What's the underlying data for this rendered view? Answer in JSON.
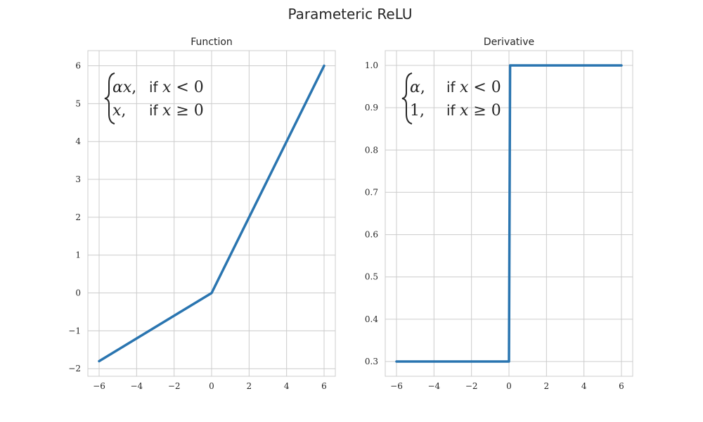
{
  "suptitle": "Parameteric ReLU",
  "colors": {
    "line": "#2a75b0"
  },
  "chart_data": [
    {
      "type": "line",
      "title": "Function",
      "xlabel": "",
      "ylabel": "",
      "xlim": [
        -6.6,
        6.6
      ],
      "ylim": [
        -2.2,
        6.4
      ],
      "xticks": [
        -6,
        -4,
        -2,
        0,
        2,
        4,
        6
      ],
      "xtick_labels": [
        "−6",
        "−4",
        "−2",
        "0",
        "2",
        "4",
        "6"
      ],
      "yticks": [
        -2,
        -1,
        0,
        1,
        2,
        3,
        4,
        5,
        6
      ],
      "ytick_labels": [
        "−2",
        "−1",
        "0",
        "1",
        "2",
        "3",
        "4",
        "5",
        "6"
      ],
      "grid": true,
      "series": [
        {
          "x": [
            -6,
            0,
            6
          ],
          "y": [
            -1.8,
            0,
            6
          ]
        }
      ],
      "annotation": {
        "row1": {
          "expr_a": "α",
          "expr_b": "x",
          "expr_tail": ",",
          "word": "if",
          "cond_var": "x",
          "cond_rest": "< 0"
        },
        "row2": {
          "expr_a": "",
          "expr_b": "x",
          "expr_tail": ",",
          "word": "if",
          "cond_var": "x",
          "cond_rest": "≥ 0"
        }
      }
    },
    {
      "type": "line",
      "title": "Derivative",
      "xlabel": "",
      "ylabel": "",
      "xlim": [
        -6.6,
        6.6
      ],
      "ylim": [
        0.265,
        1.035
      ],
      "xticks": [
        -6,
        -4,
        -2,
        0,
        2,
        4,
        6
      ],
      "xtick_labels": [
        "−6",
        "−4",
        "−2",
        "0",
        "2",
        "4",
        "6"
      ],
      "yticks": [
        0.3,
        0.4,
        0.5,
        0.6,
        0.7,
        0.8,
        0.9,
        1.0
      ],
      "ytick_labels": [
        "0.3",
        "0.4",
        "0.5",
        "0.6",
        "0.7",
        "0.8",
        "0.9",
        "1.0"
      ],
      "grid": true,
      "series": [
        {
          "x": [
            -6,
            0,
            0.06,
            6
          ],
          "y": [
            0.3,
            0.3,
            1.0,
            1.0
          ]
        }
      ],
      "annotation": {
        "row1": {
          "expr_a": "α",
          "expr_b": "",
          "expr_tail": ",",
          "word": "if",
          "cond_var": "x",
          "cond_rest": "< 0"
        },
        "row2": {
          "expr_a": "1",
          "expr_b": "",
          "expr_tail": ",",
          "word": "if",
          "cond_var": "x",
          "cond_rest": "≥ 0"
        }
      }
    }
  ]
}
